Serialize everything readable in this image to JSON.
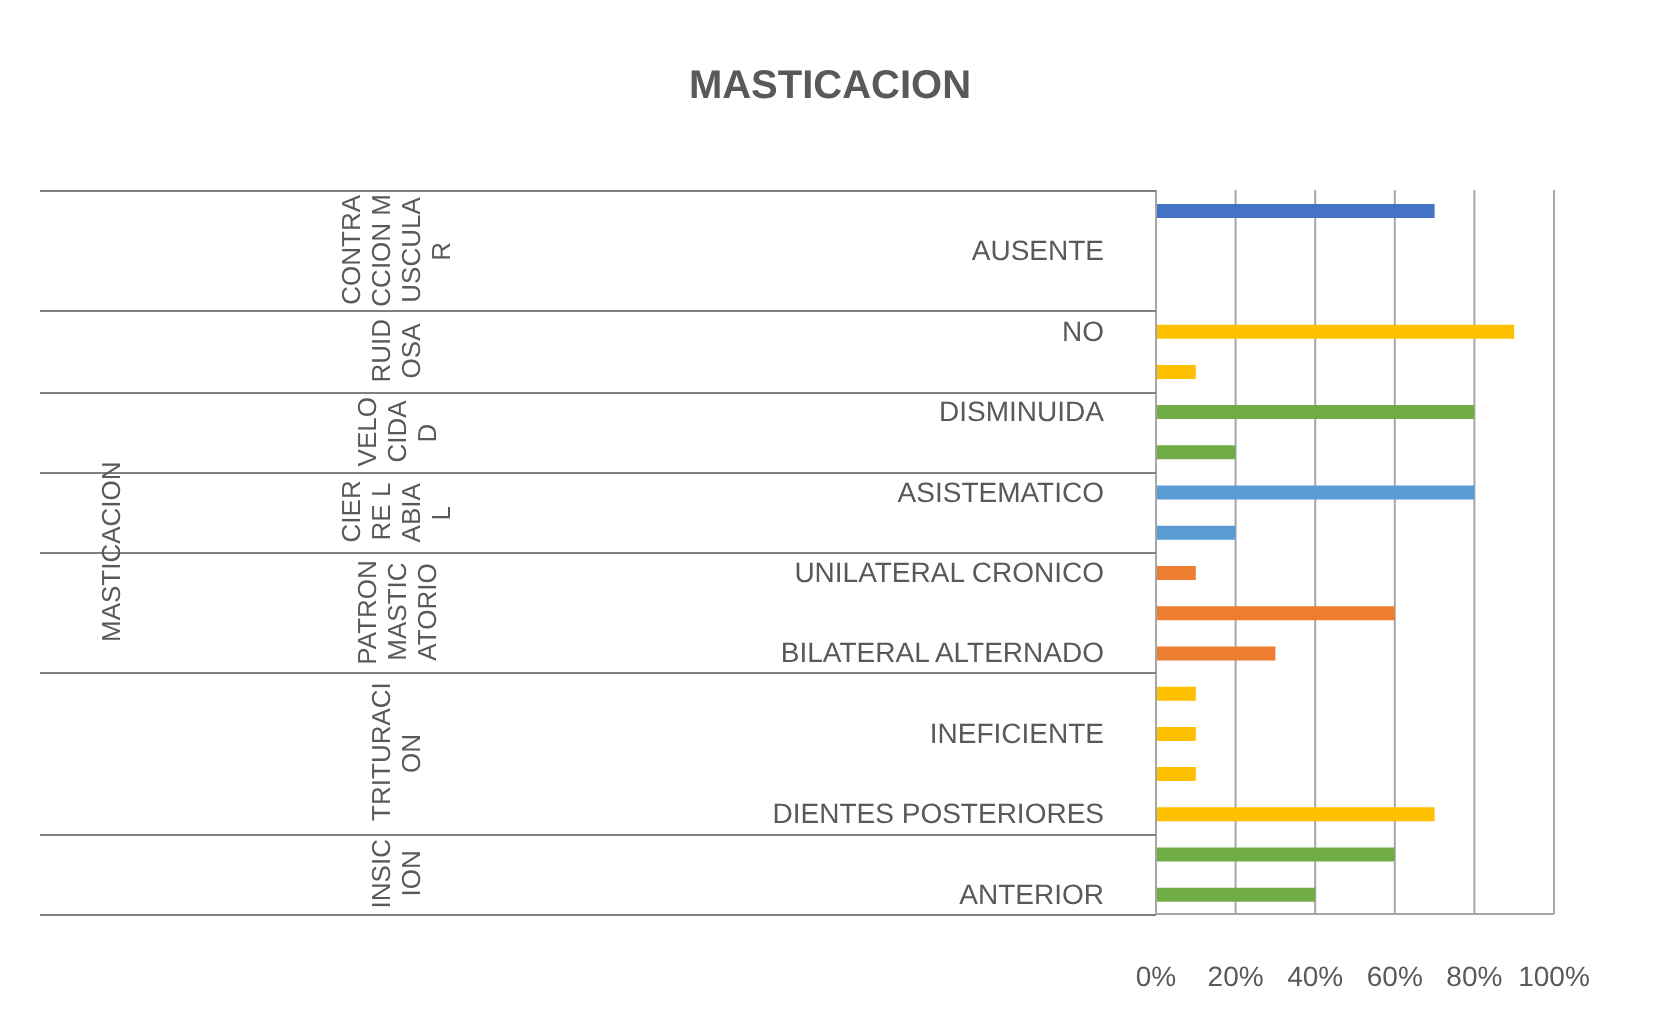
{
  "chart_data": {
    "type": "bar",
    "orientation": "horizontal",
    "title": "MASTICACION",
    "categories": [
      null,
      "AUSENTE",
      null,
      "NO",
      null,
      "DISMINUIDA",
      null,
      "ASISTEMATICO",
      null,
      "UNILATERAL CRONICO",
      null,
      "BILATERAL ALTERNADO",
      null,
      "INEFICIENTE",
      null,
      "DIENTES POSTERIORES",
      null,
      "ANTERIOR"
    ],
    "values": [
      70,
      null,
      null,
      90,
      10,
      80,
      20,
      80,
      20,
      10,
      60,
      30,
      10,
      10,
      10,
      70,
      60,
      40
    ],
    "colors": [
      "#4472c4",
      "#4472c4",
      "#4472c4",
      "#ffc000",
      "#ffc000",
      "#70ad47",
      "#70ad47",
      "#5b9bd5",
      "#5b9bd5",
      "#ed7d31",
      "#ed7d31",
      "#ed7d31",
      "#ffc000",
      "#ffc000",
      "#ffc000",
      "#ffc000",
      "#70ad47",
      "#70ad47"
    ],
    "xlim": [
      0,
      100
    ],
    "xticks": [
      {
        "value": 0,
        "label": "0%"
      },
      {
        "value": 20,
        "label": "20%"
      },
      {
        "value": 40,
        "label": "40%"
      },
      {
        "value": 60,
        "label": "60%"
      },
      {
        "value": 80,
        "label": "80%"
      },
      {
        "value": 100,
        "label": "100%"
      }
    ],
    "grid": "x",
    "legend": false,
    "annotations": [
      "MASTICACION",
      "CONTRACCION MUSCULAR",
      "RUIDOSA",
      "VELOCIDAD",
      "CIERRE LABIAL",
      "PATRON MASTICATORIO",
      "TRITURACION",
      "INSICION"
    ]
  }
}
